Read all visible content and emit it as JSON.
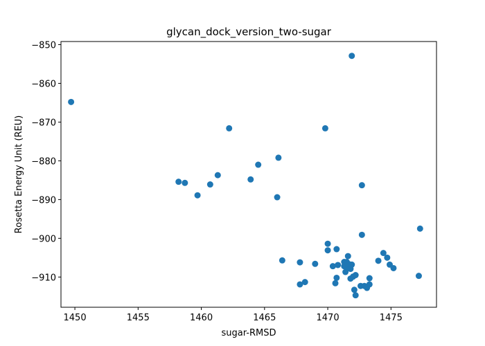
{
  "chart_data": {
    "type": "scatter",
    "title": "glycan_dock_version_two-sugar",
    "xlabel": "sugar-RMSD",
    "ylabel": "Rosetta Energy Unit (REU)",
    "xlim": [
      1448.9,
      1478.6
    ],
    "ylim": [
      -917.8,
      -849.2
    ],
    "xticks": [
      1450,
      1455,
      1460,
      1465,
      1470,
      1475
    ],
    "yticks": [
      -850,
      -860,
      -870,
      -880,
      -890,
      -900,
      -910
    ],
    "xtick_labels": [
      "1450",
      "1455",
      "1460",
      "1465",
      "1470",
      "1475"
    ],
    "ytick_labels": [
      "−850",
      "−860",
      "−870",
      "−880",
      "−890",
      "−900",
      "−910"
    ],
    "grid": false,
    "marker_color": "#1f77b4",
    "series": [
      {
        "x": [
          1449.7,
          1458.2,
          1458.7,
          1459.7,
          1460.7,
          1461.3,
          1462.2,
          1463.9,
          1464.5,
          1466.0,
          1466.1,
          1466.4,
          1467.8,
          1467.8,
          1468.2,
          1469.0,
          1469.8,
          1470.0,
          1470.0,
          1470.4,
          1470.6,
          1470.7,
          1470.7,
          1470.8,
          1471.3,
          1471.3,
          1471.4,
          1471.5,
          1471.6,
          1471.6,
          1471.7,
          1471.8,
          1471.8,
          1471.9,
          1471.9,
          1472.0,
          1472.1,
          1472.2,
          1472.2,
          1472.6,
          1472.7,
          1472.7,
          1472.9,
          1473.1,
          1473.3,
          1473.3,
          1474.0,
          1474.4,
          1474.7,
          1474.9,
          1475.2,
          1477.2,
          1477.3
        ],
        "y": [
          -864.8,
          -885.4,
          -885.7,
          -888.9,
          -886.1,
          -883.7,
          -871.6,
          -884.8,
          -881.0,
          -889.4,
          -879.2,
          -905.7,
          -906.2,
          -911.9,
          -911.3,
          -906.6,
          -871.6,
          -901.4,
          -903.1,
          -907.2,
          -911.6,
          -910.2,
          -902.8,
          -906.9,
          -906.1,
          -907.2,
          -908.7,
          -906.1,
          -907.6,
          -904.6,
          -906.7,
          -907.9,
          -910.4,
          -852.9,
          -906.8,
          -909.9,
          -913.3,
          -914.7,
          -909.5,
          -912.3,
          -886.3,
          -899.1,
          -912.3,
          -912.8,
          -911.9,
          -910.3,
          -905.8,
          -903.8,
          -905.0,
          -906.8,
          -907.7,
          -909.7,
          -897.5
        ]
      }
    ]
  }
}
